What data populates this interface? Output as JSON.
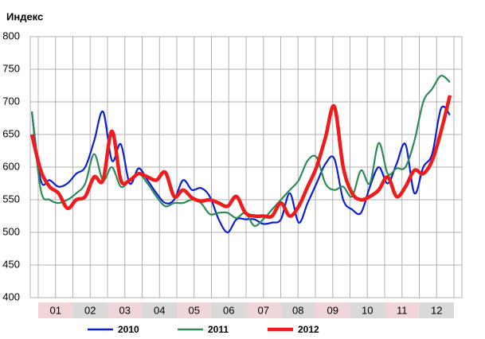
{
  "chart_data": {
    "type": "line",
    "title": "Индекс",
    "months": [
      "01",
      "02",
      "03",
      "04",
      "05",
      "06",
      "07",
      "08",
      "09",
      "10",
      "11",
      "12"
    ],
    "ylim": [
      400,
      800
    ],
    "yticks": [
      800,
      750,
      700,
      650,
      600,
      550,
      500,
      450,
      400
    ],
    "grid": true,
    "series": [
      {
        "name": "2010",
        "color": "#0a1fd6",
        "values": [
          685,
          580,
          580,
          570,
          575,
          590,
          600,
          640,
          685,
          610,
          635,
          575,
          598,
          580,
          560,
          545,
          550,
          580,
          565,
          568,
          555,
          520,
          500,
          520,
          520,
          520,
          513,
          515,
          520,
          560,
          515,
          545,
          575,
          605,
          613,
          550,
          535,
          530,
          570,
          600,
          575,
          605,
          635,
          560,
          600,
          620,
          690,
          680
        ]
      },
      {
        "name": "2011",
        "color": "#2e8b57",
        "values": [
          685,
          565,
          550,
          545,
          550,
          560,
          575,
          620,
          580,
          600,
          570,
          580,
          590,
          575,
          555,
          540,
          545,
          545,
          550,
          545,
          528,
          530,
          530,
          522,
          530,
          510,
          520,
          535,
          550,
          565,
          580,
          610,
          615,
          575,
          565,
          570,
          555,
          595,
          575,
          637,
          590,
          598,
          600,
          640,
          700,
          720,
          740,
          730
        ]
      },
      {
        "name": "2012",
        "color": "#ee1c1c",
        "values": [
          650,
          595,
          570,
          560,
          537,
          550,
          555,
          585,
          580,
          655,
          580,
          580,
          590,
          585,
          580,
          592,
          555,
          565,
          553,
          548,
          550,
          545,
          540,
          555,
          530,
          525,
          525,
          525,
          545,
          525,
          540,
          570,
          600,
          645,
          693,
          600,
          560,
          550,
          555,
          565,
          585,
          555,
          570,
          595,
          590,
          610,
          655,
          710
        ]
      }
    ]
  }
}
